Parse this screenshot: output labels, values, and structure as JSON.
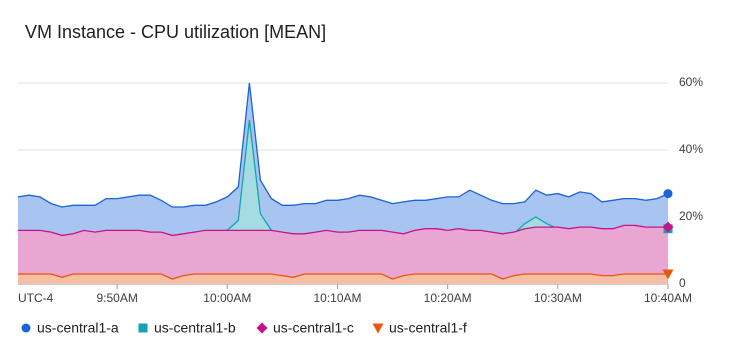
{
  "chart_data": {
    "type": "area",
    "title": "VM Instance - CPU utilization [MEAN]",
    "timezone": "UTC-4",
    "categories": [
      null,
      null,
      null,
      null,
      null,
      null,
      null,
      null,
      null,
      "9:50AM",
      null,
      null,
      null,
      null,
      null,
      null,
      null,
      null,
      null,
      "10:00AM",
      null,
      null,
      null,
      null,
      null,
      null,
      null,
      null,
      null,
      "10:10AM",
      null,
      null,
      null,
      null,
      null,
      null,
      null,
      null,
      null,
      "10:20AM",
      null,
      null,
      null,
      null,
      null,
      null,
      null,
      null,
      null,
      "10:30AM",
      null,
      null,
      null,
      null,
      null,
      null,
      null,
      null,
      null,
      "10:40AM"
    ],
    "ylim": [
      0,
      63
    ],
    "yticks": [
      0,
      {
        "value": 20,
        "label": "20%"
      },
      {
        "value": 40,
        "label": "40%"
      },
      {
        "value": 60,
        "label": "60%"
      }
    ],
    "grid": true,
    "legend": "bottom",
    "series": [
      {
        "name": "us-central1-a",
        "color": "#1a63d8",
        "marker": "circle",
        "values": [
          26,
          26.5,
          26,
          24,
          23,
          23.5,
          23.5,
          23.5,
          25.5,
          25.5,
          26,
          26.5,
          26.5,
          25,
          23,
          23,
          23.5,
          23.5,
          24.5,
          26,
          29,
          60,
          31,
          25.5,
          23.5,
          23.5,
          24,
          24,
          25,
          25,
          25.5,
          26.5,
          26,
          25,
          24,
          24.5,
          25,
          25,
          25.5,
          26,
          26,
          28,
          26.5,
          25,
          24,
          24,
          24.5,
          28,
          26.5,
          27,
          26,
          27.5,
          27,
          24.5,
          25,
          25.5,
          25.5,
          25,
          25.5,
          27
        ]
      },
      {
        "name": "us-central1-b",
        "color": "#12a4af",
        "marker": "square",
        "values": [
          15.5,
          15.5,
          15.5,
          15,
          14,
          14.5,
          15.5,
          15,
          15.5,
          15.5,
          15.5,
          15.5,
          15,
          15,
          14,
          14.5,
          15,
          15.5,
          15.5,
          16,
          19,
          49,
          21,
          16,
          15,
          14.5,
          14.5,
          15,
          15.5,
          15,
          15,
          15.5,
          15.5,
          15.5,
          15,
          14.5,
          15.5,
          16,
          16,
          15.5,
          16,
          15.5,
          15.5,
          15,
          14.5,
          15,
          18,
          20,
          18,
          16.5,
          16,
          16.5,
          16.5,
          16,
          16,
          17,
          17,
          16.5,
          16.5,
          16.5
        ]
      },
      {
        "name": "us-central1-c",
        "color": "#c5148a",
        "marker": "diamond",
        "values": [
          16,
          16,
          16,
          15.5,
          14.5,
          15,
          16,
          15.5,
          16,
          16,
          16,
          16,
          15.5,
          15.5,
          14.5,
          15,
          15.5,
          16,
          16,
          16,
          16,
          16,
          16,
          16,
          15.5,
          15,
          15,
          15.5,
          16,
          15.5,
          15.5,
          16,
          16,
          16,
          15.5,
          15,
          16,
          16.5,
          16.5,
          16,
          16.5,
          16,
          16,
          15.5,
          15,
          15.5,
          16.5,
          17,
          17,
          17,
          16.5,
          17,
          17,
          16.5,
          16.5,
          17.5,
          17.5,
          17,
          17,
          17
        ]
      },
      {
        "name": "us-central1-f",
        "color": "#e8570e",
        "marker": "triangle",
        "values": [
          3,
          3,
          3,
          3,
          2,
          3,
          3,
          3,
          3,
          3,
          3,
          3,
          3,
          3,
          1.5,
          2.5,
          3,
          3,
          3,
          3,
          3,
          3,
          3,
          3,
          2.5,
          2,
          3,
          3,
          3,
          3,
          3,
          3,
          3,
          3,
          1.5,
          2.5,
          3,
          3,
          3,
          3,
          3,
          3,
          3,
          3,
          1.5,
          2.5,
          3,
          3,
          3,
          3,
          3,
          3,
          3,
          2.5,
          2.5,
          3,
          3,
          3,
          3,
          3
        ]
      }
    ]
  }
}
